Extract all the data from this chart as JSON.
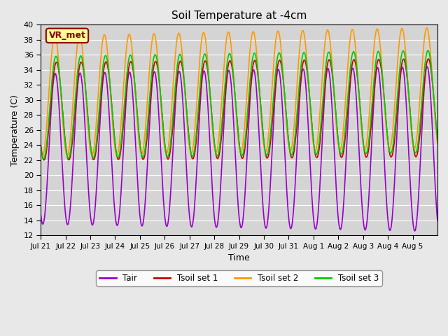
{
  "title": "Soil Temperature at -4cm",
  "xlabel": "Time",
  "ylabel": "Temperature (C)",
  "ylim": [
    12,
    40
  ],
  "yticks": [
    12,
    14,
    16,
    18,
    20,
    22,
    24,
    26,
    28,
    30,
    32,
    34,
    36,
    38,
    40
  ],
  "date_labels": [
    "Jul 21",
    "Jul 22",
    "Jul 23",
    "Jul 24",
    "Jul 25",
    "Jul 26",
    "Jul 27",
    "Jul 28",
    "Jul 29",
    "Jul 30",
    "Jul 31",
    "Aug 1",
    "Aug 2",
    "Aug 3",
    "Aug 4",
    "Aug 5"
  ],
  "n_days": 16,
  "points_per_day": 48,
  "tair_color": "#9900cc",
  "tsoil1_color": "#cc0000",
  "tsoil2_color": "#ff9900",
  "tsoil3_color": "#00cc00",
  "fig_bg_color": "#e8e8e8",
  "plot_bg_color": "#d4d4d4",
  "annotation_text": "VR_met",
  "annotation_bg": "#ffff99",
  "annotation_border": "#8b0000",
  "legend_labels": [
    "Tair",
    "Tsoil set 1",
    "Tsoil set 2",
    "Tsoil set 3"
  ],
  "line_width": 1.2
}
